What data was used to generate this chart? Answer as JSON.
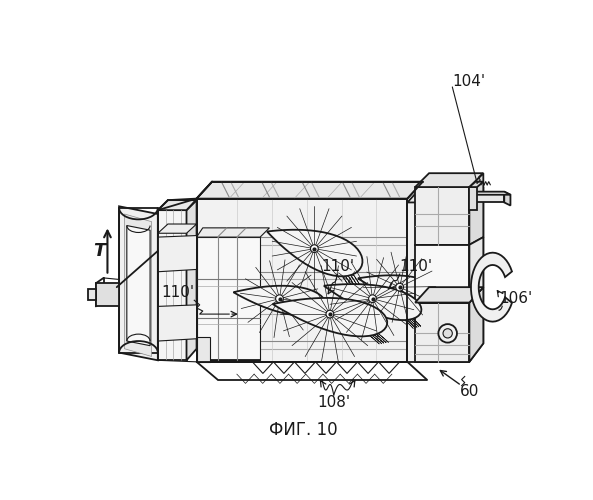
{
  "title": "ФИГ. 10",
  "background_color": "#ffffff",
  "line_color": "#1a1a1a",
  "fig_width": 5.93,
  "fig_height": 5.0,
  "label_104": "104'",
  "label_106": "106'",
  "label_108": "108'",
  "label_110": "110'",
  "label_T": "T",
  "label_60": "60"
}
